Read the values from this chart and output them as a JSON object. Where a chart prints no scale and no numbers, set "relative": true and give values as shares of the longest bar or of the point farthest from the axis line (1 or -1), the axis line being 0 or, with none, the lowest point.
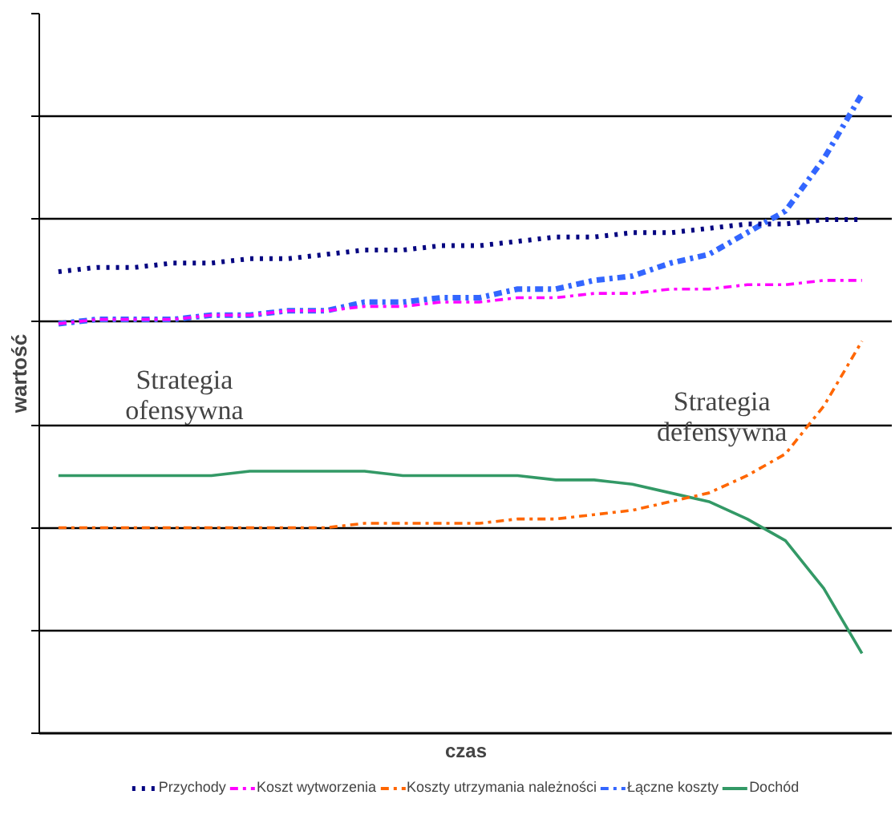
{
  "chart_data": {
    "type": "line",
    "relative": true,
    "xlabel": "czas",
    "ylabel": "wartość",
    "grid": "y",
    "legend": "bottom",
    "marker": "none",
    "categories": [
      null,
      null,
      null,
      null,
      null,
      null,
      null,
      null,
      null,
      null,
      null,
      null,
      null,
      null,
      null,
      null,
      null,
      null,
      null,
      null,
      null,
      null
    ],
    "annotations": [
      "Strategia ofensywna",
      "Strategia defensywna"
    ],
    "series": [
      {
        "name": "Przychody",
        "color": "#000080",
        "line_style": "dotted",
        "values": [
          0.59,
          0.6,
          0.6,
          0.61,
          0.61,
          0.62,
          0.62,
          0.63,
          0.64,
          0.64,
          0.65,
          0.65,
          0.66,
          0.67,
          0.67,
          0.68,
          0.68,
          0.69,
          0.7,
          0.7,
          0.71,
          0.71
        ]
      },
      {
        "name": "Koszt wytworzenia",
        "color": "#ff00ff",
        "line_style": "dashdot",
        "values": [
          0.47,
          0.48,
          0.48,
          0.48,
          0.49,
          0.49,
          0.5,
          0.5,
          0.51,
          0.51,
          0.52,
          0.52,
          0.53,
          0.53,
          0.54,
          0.54,
          0.55,
          0.55,
          0.56,
          0.56,
          0.57,
          0.57
        ]
      },
      {
        "name": "Koszty utrzymania należności",
        "color": "#ff6600",
        "line_style": "dashdot",
        "values": [
          0,
          0,
          0,
          0,
          0,
          0,
          0,
          0,
          0.01,
          0.01,
          0.01,
          0.01,
          0.02,
          0.02,
          0.03,
          0.04,
          0.06,
          0.08,
          0.12,
          0.17,
          0.28,
          0.43
        ]
      },
      {
        "name": "Łączne koszty",
        "color": "#3366ff",
        "line_style": "dashdot",
        "values": [
          0.47,
          0.48,
          0.48,
          0.48,
          0.49,
          0.49,
          0.5,
          0.5,
          0.52,
          0.52,
          0.53,
          0.53,
          0.55,
          0.55,
          0.57,
          0.58,
          0.61,
          0.63,
          0.68,
          0.73,
          0.85,
          1.0
        ]
      },
      {
        "name": "Dochód",
        "color": "#339966",
        "line_style": "solid",
        "values": [
          0.12,
          0.12,
          0.12,
          0.12,
          0.12,
          0.13,
          0.13,
          0.13,
          0.13,
          0.12,
          0.12,
          0.12,
          0.12,
          0.11,
          0.11,
          0.1,
          0.08,
          0.06,
          0.02,
          -0.03,
          -0.14,
          -0.29
        ]
      }
    ]
  }
}
